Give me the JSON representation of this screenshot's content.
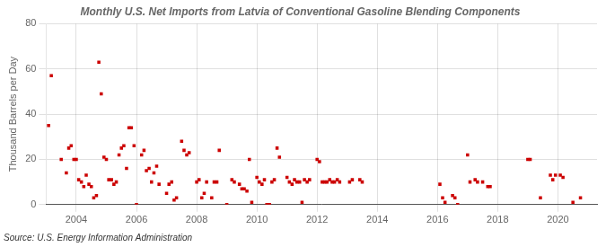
{
  "chart_data": {
    "type": "scatter",
    "title": "Monthly U.S. Net Imports from Latvia of Conventional Gasoline Blending Components",
    "ylabel": "Thousand Barrels per Day",
    "annotation": "Source: U.S. Energy Information Administration",
    "x": [
      2003.08,
      2003.17,
      2003.5,
      2003.67,
      2003.75,
      2003.83,
      2003.92,
      2004.0,
      2004.08,
      2004.17,
      2004.25,
      2004.33,
      2004.42,
      2004.5,
      2004.58,
      2004.67,
      2004.75,
      2004.83,
      2004.92,
      2005.0,
      2005.08,
      2005.17,
      2005.25,
      2005.33,
      2005.42,
      2005.5,
      2005.58,
      2005.67,
      2005.75,
      2005.83,
      2005.92,
      2006.0,
      2006.17,
      2006.25,
      2006.33,
      2006.42,
      2006.5,
      2006.58,
      2006.67,
      2006.75,
      2007.0,
      2007.08,
      2007.17,
      2007.25,
      2007.33,
      2007.5,
      2007.58,
      2007.67,
      2007.75,
      2008.0,
      2008.08,
      2008.17,
      2008.25,
      2008.33,
      2008.5,
      2008.58,
      2008.67,
      2008.75,
      2009.0,
      2009.17,
      2009.25,
      2009.42,
      2009.5,
      2009.58,
      2009.67,
      2009.75,
      2009.83,
      2010.0,
      2010.08,
      2010.17,
      2010.25,
      2010.33,
      2010.42,
      2010.5,
      2010.58,
      2010.67,
      2010.75,
      2011.0,
      2011.08,
      2011.17,
      2011.25,
      2011.33,
      2011.42,
      2011.5,
      2011.58,
      2011.67,
      2011.75,
      2012.0,
      2012.08,
      2012.17,
      2012.25,
      2012.33,
      2012.42,
      2012.5,
      2012.58,
      2012.67,
      2012.75,
      2013.08,
      2013.17,
      2013.42,
      2013.5,
      2016.08,
      2016.17,
      2016.25,
      2016.5,
      2016.58,
      2016.67,
      2017.0,
      2017.08,
      2017.25,
      2017.33,
      2017.5,
      2017.67,
      2017.75,
      2019.0,
      2019.08,
      2019.42,
      2019.75,
      2019.83,
      2019.92,
      2020.08,
      2020.17,
      2020.5,
      2020.75
    ],
    "values": [
      35,
      57,
      20,
      14,
      25,
      26,
      20,
      20,
      11,
      10,
      8,
      13,
      9,
      8,
      3,
      4,
      63,
      49,
      21,
      20,
      11,
      11,
      9,
      10,
      22,
      25,
      26,
      16,
      34,
      34,
      26,
      0,
      22,
      24,
      15,
      16,
      10,
      14,
      17,
      9,
      5,
      9,
      10,
      2,
      3,
      28,
      24,
      22,
      23,
      10,
      11,
      3,
      5,
      10,
      3,
      10,
      10,
      24,
      0,
      11,
      10,
      9,
      7,
      7,
      6,
      20,
      1,
      12,
      10,
      9,
      11,
      0,
      0,
      10,
      11,
      25,
      21,
      12,
      10,
      9,
      11,
      10,
      10,
      1,
      11,
      10,
      11,
      20,
      19,
      10,
      10,
      10,
      11,
      10,
      10,
      11,
      10,
      10,
      11,
      11,
      10,
      9,
      3,
      1,
      4,
      3,
      0,
      22,
      10,
      11,
      10,
      10,
      8,
      8,
      20,
      20,
      3,
      13,
      11,
      13,
      13,
      12,
      1,
      3
    ],
    "color": "#cc0000",
    "marker": "square",
    "xlim": [
      2003.0,
      2021.3
    ],
    "xticks": [
      2004,
      2006,
      2008,
      2010,
      2012,
      2014,
      2016,
      2018,
      2020
    ],
    "ylim": [
      0,
      80
    ],
    "yticks": [
      0,
      20,
      40,
      60,
      80
    ],
    "grid": true
  }
}
